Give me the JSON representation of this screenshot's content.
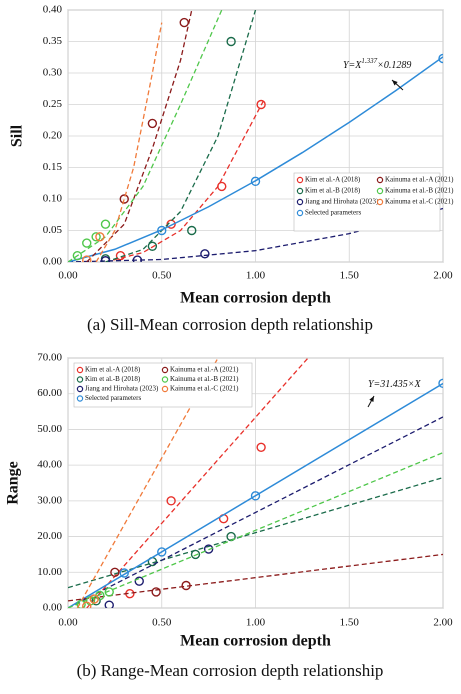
{
  "chart_data": [
    {
      "type": "scatter",
      "ylabel": "Sill",
      "xlabel": "Mean corrosion depth",
      "caption": "(a) Sill-Mean corrosion depth relationship",
      "xlim": [
        0,
        2
      ],
      "ylim": [
        0,
        0.4
      ],
      "xticks": [
        {
          "value": 0,
          "label": "0.00"
        },
        {
          "value": 0.5,
          "label": "0.50"
        },
        {
          "value": 1,
          "label": "1.00"
        },
        {
          "value": 1.5,
          "label": "1.50"
        },
        {
          "value": 2,
          "label": "2.00"
        }
      ],
      "yticks": [
        {
          "value": 0,
          "label": "0.00"
        },
        {
          "value": 0.05,
          "label": "0.05"
        },
        {
          "value": 0.1,
          "label": "0.10"
        },
        {
          "value": 0.15,
          "label": "0.15"
        },
        {
          "value": 0.2,
          "label": "0.20"
        },
        {
          "value": 0.25,
          "label": "0.25"
        },
        {
          "value": 0.3,
          "label": "0.30"
        },
        {
          "value": 0.35,
          "label": "0.35"
        },
        {
          "value": 0.4,
          "label": "0.40"
        }
      ],
      "grid": true,
      "legend": "lower right",
      "annotation": {
        "base": "Y=X",
        "exp": "1.337",
        "tail": "×0.1289"
      },
      "series": [
        {
          "name": "Kim et al.-A (2018)",
          "color": "#e8302a",
          "x": [
            0.28,
            0.55,
            0.82,
            1.03
          ],
          "values": [
            0.01,
            0.06,
            0.12,
            0.25
          ],
          "fit_x": [
            0.2,
            0.4,
            0.6,
            0.8,
            1.05
          ],
          "fit_y": [
            0,
            0.015,
            0.05,
            0.12,
            0.26
          ],
          "dashed": true
        },
        {
          "name": "Kim et al.-B (2018)",
          "color": "#1a6b4a",
          "x": [
            0.2,
            0.45,
            0.66,
            0.87
          ],
          "values": [
            0.005,
            0.025,
            0.05,
            0.35
          ],
          "fit_x": [
            0.2,
            0.4,
            0.6,
            0.8,
            1.0
          ],
          "fit_y": [
            0,
            0.02,
            0.08,
            0.2,
            0.4
          ],
          "dashed": true
        },
        {
          "name": "Jiang and Hirohata (2023)",
          "color": "#1c1c6e",
          "x": [
            0.2,
            0.37,
            0.73
          ],
          "values": [
            0.002,
            0.003,
            0.013
          ],
          "fit_x": [
            0,
            0.5,
            1.0,
            1.5,
            2.0
          ],
          "fit_y": [
            0,
            0.004,
            0.018,
            0.045,
            0.085
          ],
          "dashed": true
        },
        {
          "name": "Selected parameters",
          "color": "#2e8bd8",
          "x": [
            0.5,
            1.0,
            2.0
          ],
          "values": [
            0.05,
            0.128,
            0.323
          ],
          "fit_x": [
            0,
            0.25,
            0.5,
            0.75,
            1,
            1.25,
            1.5,
            1.75,
            2
          ],
          "fit_y": [
            0,
            0.0202,
            0.051,
            0.0877,
            0.1289,
            0.1737,
            0.2217,
            0.2724,
            0.3256
          ],
          "dashed": false
        },
        {
          "name": "Kainuma et al.-A (2021)",
          "color": "#8b1a1a",
          "x": [
            0.3,
            0.45,
            0.62
          ],
          "values": [
            0.1,
            0.22,
            0.38
          ],
          "fit_x": [
            0.1,
            0.3,
            0.45,
            0.6,
            0.66
          ],
          "fit_y": [
            0,
            0.06,
            0.18,
            0.32,
            0.4
          ],
          "dashed": true
        },
        {
          "name": "Kainuma et al.-B (2021)",
          "color": "#4fc74a",
          "x": [
            0.05,
            0.1,
            0.15,
            0.2
          ],
          "values": [
            0.01,
            0.03,
            0.04,
            0.06
          ],
          "fit_x": [
            0,
            0.2,
            0.4,
            0.6,
            0.82
          ],
          "fit_y": [
            0,
            0.04,
            0.12,
            0.25,
            0.4
          ],
          "dashed": true
        },
        {
          "name": "Kainuma et al.-C (2021)",
          "color": "#f07a3a",
          "x": [
            0.1,
            0.17
          ],
          "values": [
            0.003,
            0.04
          ],
          "fit_x": [
            0.15,
            0.25,
            0.35,
            0.45,
            0.5
          ],
          "fit_y": [
            0,
            0.05,
            0.15,
            0.3,
            0.38
          ],
          "dashed": true
        }
      ]
    },
    {
      "type": "scatter",
      "ylabel": "Range",
      "xlabel": "Mean corrosion depth",
      "caption": "(b) Range-Mean corrosion depth relationship",
      "xlim": [
        0,
        2
      ],
      "ylim": [
        0,
        70
      ],
      "xticks": [
        {
          "value": 0,
          "label": "0.00"
        },
        {
          "value": 0.5,
          "label": "0.50"
        },
        {
          "value": 1,
          "label": "1.00"
        },
        {
          "value": 1.5,
          "label": "1.50"
        },
        {
          "value": 2,
          "label": "2.00"
        }
      ],
      "yticks": [
        {
          "value": 0,
          "label": "0.00"
        },
        {
          "value": 10,
          "label": "10.00"
        },
        {
          "value": 20,
          "label": "20.00"
        },
        {
          "value": 30,
          "label": "30.00"
        },
        {
          "value": 40,
          "label": "40.00"
        },
        {
          "value": 50,
          "label": "50.00"
        },
        {
          "value": 60,
          "label": "60.00"
        },
        {
          "value": 70,
          "label": "70.00"
        }
      ],
      "grid": true,
      "legend": "upper left",
      "annotation": {
        "base": "Y=31.435×X"
      },
      "series": [
        {
          "name": "Kim et al.-A (2018)",
          "color": "#e8302a",
          "x": [
            0.33,
            0.55,
            0.83,
            1.03
          ],
          "values": [
            4,
            30,
            25,
            45
          ],
          "fit_x": [
            0.1,
            1.28
          ],
          "fit_y": [
            0,
            70
          ],
          "dashed": true
        },
        {
          "name": "Kim et al.-B (2018)",
          "color": "#1a6b4a",
          "x": [
            0.15,
            0.45,
            0.68,
            0.87
          ],
          "values": [
            2,
            13,
            15,
            20
          ],
          "fit_x": [
            0,
            2
          ],
          "fit_y": [
            5.7,
            36.5
          ],
          "dashed": true
        },
        {
          "name": "Jiang and Hirohata (2023)",
          "color": "#1c1c6e",
          "x": [
            0.22,
            0.38,
            0.75
          ],
          "values": [
            0.8,
            7.5,
            16.5
          ],
          "fit_x": [
            0,
            2
          ],
          "fit_y": [
            0,
            53.5
          ],
          "dashed": true
        },
        {
          "name": "Selected parameters",
          "color": "#2e8bd8",
          "x": [
            0.3,
            0.5,
            1.0,
            2.0
          ],
          "values": [
            9.8,
            15.7,
            31.4,
            62.9
          ],
          "fit_x": [
            0,
            2
          ],
          "fit_y": [
            0,
            62.87
          ],
          "dashed": false
        },
        {
          "name": "Kainuma et al.-A (2021)",
          "color": "#8b1a1a",
          "x": [
            0.25,
            0.47,
            0.63
          ],
          "values": [
            10,
            4.5,
            6.3
          ],
          "fit_x": [
            0,
            2
          ],
          "fit_y": [
            2,
            15
          ],
          "dashed": true
        },
        {
          "name": "Kainuma et al.-B (2021)",
          "color": "#4fc74a",
          "x": [
            0.07,
            0.12,
            0.17,
            0.22
          ],
          "values": [
            1,
            2,
            3.5,
            4.5
          ],
          "fit_x": [
            0,
            2
          ],
          "fit_y": [
            0,
            43.5
          ],
          "dashed": true
        },
        {
          "name": "Kainuma et al.-C (2021)",
          "color": "#f07a3a",
          "x": [
            0.1,
            0.14
          ],
          "values": [
            0.5,
            2.5
          ],
          "fit_x": [
            0.05,
            0.8
          ],
          "fit_y": [
            0,
            70
          ],
          "dashed": true
        }
      ]
    }
  ]
}
